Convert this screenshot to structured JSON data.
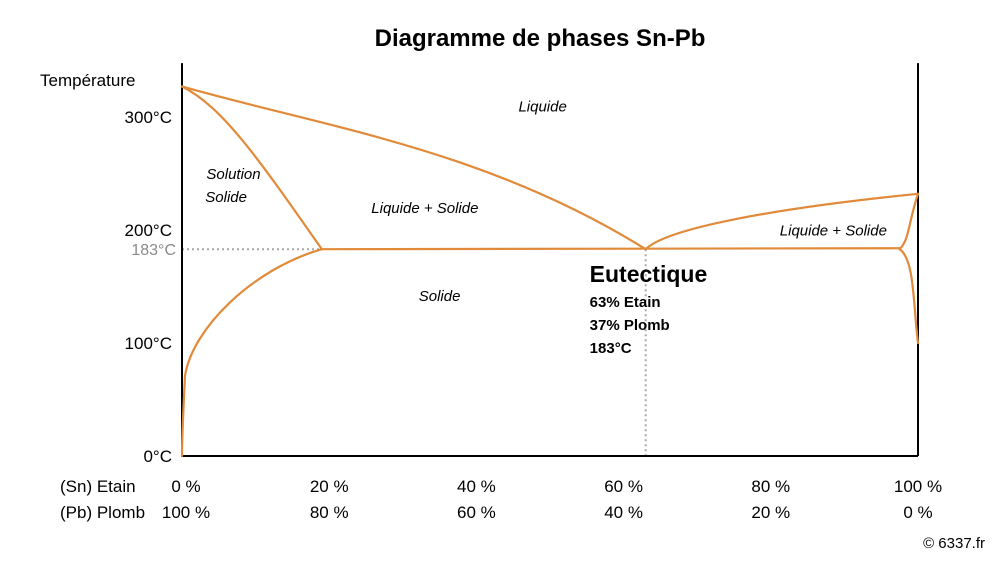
{
  "chart_data": {
    "type": "diagram",
    "title": "Diagramme de phases Sn-Pb",
    "ylabel": "Température",
    "y_ticks": [
      {
        "value": 300,
        "label": "300°C"
      },
      {
        "value": 200,
        "label": "200°C"
      },
      {
        "value": 100,
        "label": "100°C"
      },
      {
        "value": 0,
        "label": "0°C"
      }
    ],
    "ylim": [
      0,
      330
    ],
    "highlight_temperature": {
      "value": 183,
      "label": "183°C"
    },
    "x_rows": [
      {
        "label": "(Sn) Etain",
        "ticks": [
          "0 %",
          "20 %",
          "40 %",
          "60 %",
          "80 %",
          "100 %"
        ]
      },
      {
        "label": "(Pb) Plomb",
        "ticks": [
          "100 %",
          "80 %",
          "60 %",
          "40 %",
          "20 %",
          "0 %"
        ]
      }
    ],
    "xlim": [
      0,
      100
    ],
    "x_positions": [
      0,
      20,
      40,
      60,
      80,
      100
    ],
    "regions": [
      {
        "label": "Liquide",
        "x": 49,
        "t": 305
      },
      {
        "label": "Solution",
        "x": 7,
        "t": 245
      },
      {
        "label": "Solide",
        "x": 6,
        "t": 225
      },
      {
        "label": "Liquide + Solide",
        "x": 33,
        "t": 215
      },
      {
        "label": "Liquide + Solide",
        "x": 88.5,
        "t": 195
      },
      {
        "label": "Solide",
        "x": 35,
        "t": 137
      }
    ],
    "eutectic": {
      "x": 63,
      "t": 183,
      "title": "Eutectique",
      "lines": [
        "63% Etain",
        "37% Plomb",
        "183°C"
      ]
    },
    "curves": [
      {
        "name": "liquidus-left",
        "points": [
          [
            0,
            327
          ],
          [
            63,
            183
          ]
        ]
      },
      {
        "name": "solidus-left",
        "points": [
          [
            0,
            327
          ],
          [
            19,
            183
          ]
        ]
      },
      {
        "name": "solvus-left",
        "points": [
          [
            19,
            183
          ],
          [
            0,
            0
          ]
        ]
      },
      {
        "name": "eutectic-isotherm",
        "points": [
          [
            19,
            183
          ],
          [
            97.5,
            183
          ]
        ]
      },
      {
        "name": "liquidus-right",
        "points": [
          [
            63,
            183
          ],
          [
            100,
            232
          ]
        ]
      },
      {
        "name": "solidus-right",
        "points": [
          [
            97.5,
            183
          ],
          [
            100,
            232
          ]
        ]
      },
      {
        "name": "solvus-right",
        "points": [
          [
            97.5,
            183
          ],
          [
            100,
            100
          ]
        ]
      }
    ],
    "colors": {
      "curve": "#E08A3A",
      "axis": "#000000",
      "guide": "#a8a8a8"
    }
  },
  "footer": {
    "copyright": "© 6337.fr"
  }
}
